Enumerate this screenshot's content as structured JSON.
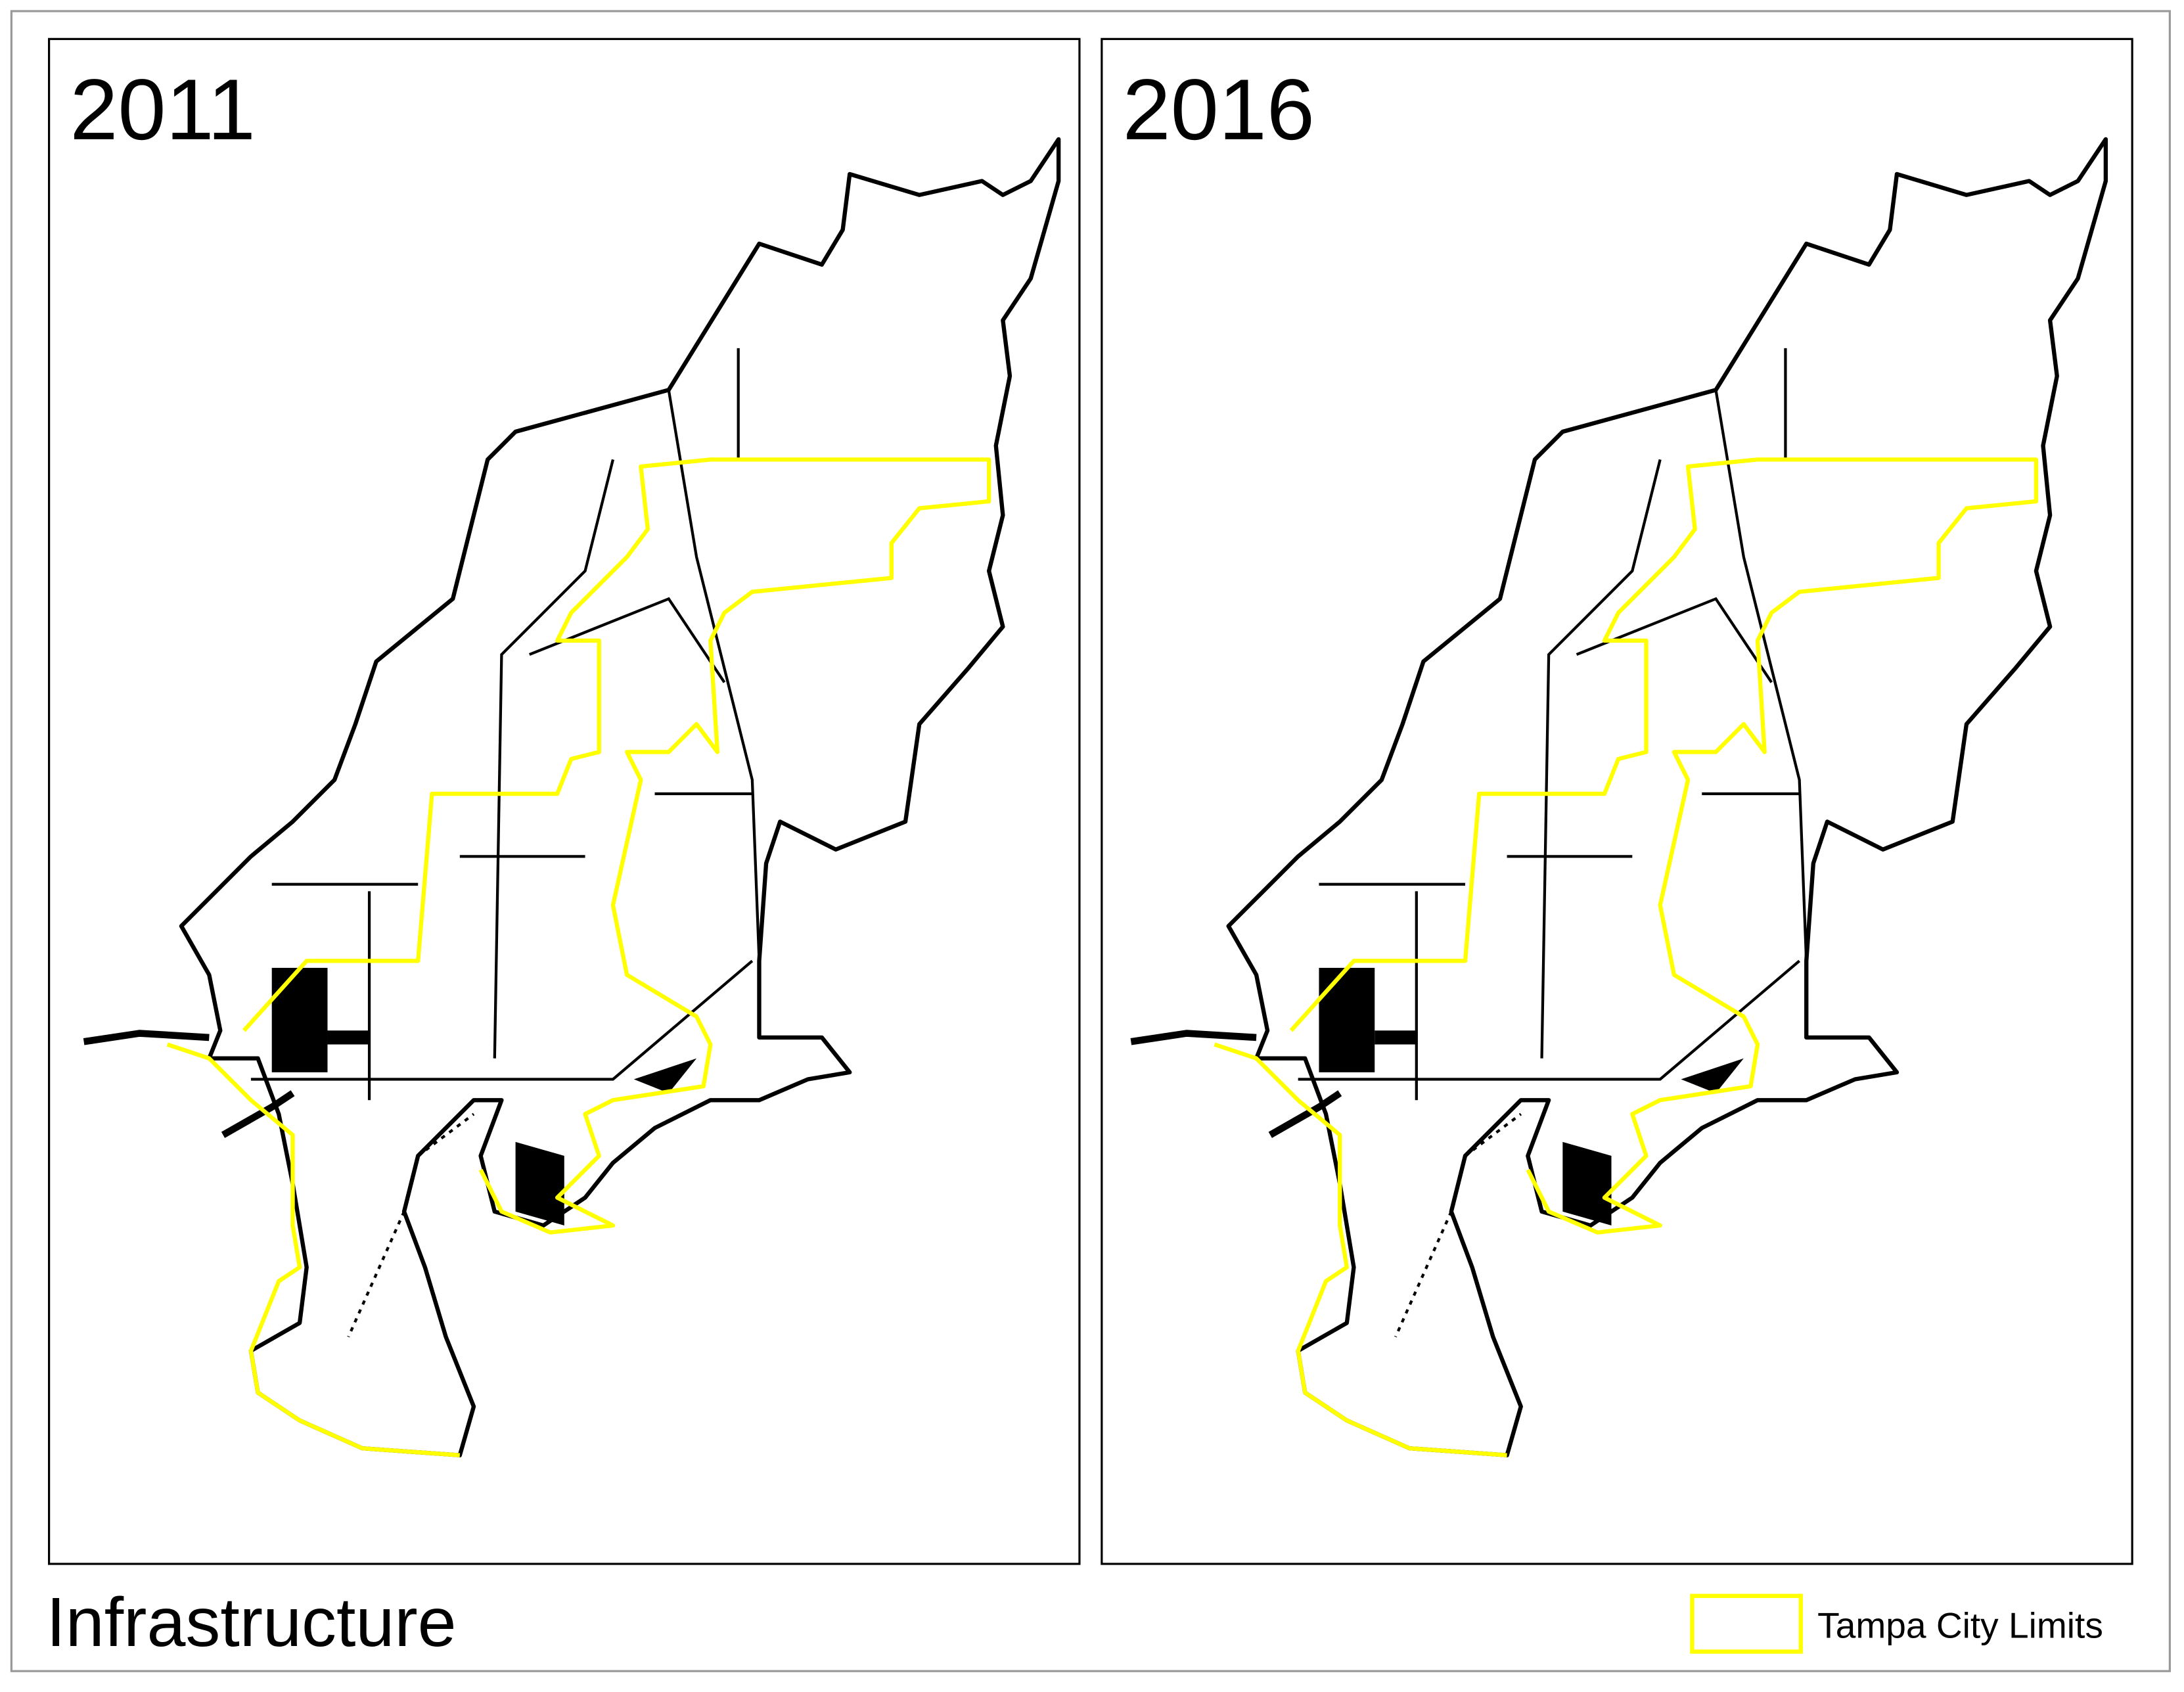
{
  "panels": [
    {
      "title": "2011"
    },
    {
      "title": "2016"
    }
  ],
  "footer": {
    "title": "Infrastructure"
  },
  "legend": {
    "label": "Tampa City Limits"
  }
}
